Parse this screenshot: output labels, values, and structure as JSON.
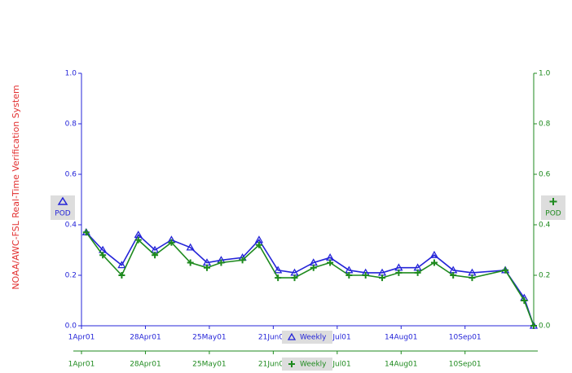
{
  "chart_data": {
    "type": "line",
    "side_label": "NOAA/AWC-FSL Real-Time Verification System",
    "ylabel": "POD",
    "y2label": "POD",
    "xlim": [
      0,
      191
    ],
    "xticks": [
      {
        "value": 0,
        "label": "1Apr01"
      },
      {
        "value": 27,
        "label": "28Apr01"
      },
      {
        "value": 54,
        "label": "25May01"
      },
      {
        "value": 81,
        "label": "21Jun01"
      },
      {
        "value": 108,
        "label": "18Jul01"
      },
      {
        "value": 135,
        "label": "14Aug01"
      },
      {
        "value": 162,
        "label": "10Sep01"
      }
    ],
    "x": [
      2,
      9,
      17,
      24,
      31,
      38,
      46,
      53,
      59,
      68,
      75,
      83,
      90,
      98,
      105,
      113,
      120,
      127,
      134,
      142,
      149,
      157,
      165,
      179,
      187,
      191
    ],
    "ylim": [
      0,
      1
    ],
    "yticks": [
      {
        "value": 0,
        "label": "0.0"
      },
      0.2,
      0.4,
      0.6,
      0.8,
      {
        "value": 1,
        "label": "1.0"
      }
    ],
    "y2lim": [
      0,
      1
    ],
    "y2ticks": [
      {
        "value": 0,
        "label": "0.0"
      },
      0.2,
      0.4,
      0.6,
      0.8,
      {
        "value": 1,
        "label": "1.0"
      }
    ],
    "series": [
      {
        "name": "Weekly",
        "color": "#2424d8",
        "marker": "triangle",
        "values": [
          0.37,
          0.3,
          0.24,
          0.36,
          0.3,
          0.34,
          0.31,
          0.25,
          0.26,
          0.27,
          0.34,
          0.22,
          0.21,
          0.25,
          0.27,
          0.22,
          0.21,
          0.21,
          0.23,
          0.23,
          0.28,
          0.22,
          0.21,
          0.22,
          0.11,
          0.0
        ]
      },
      {
        "name": "Weekly",
        "color": "#1e8a1e",
        "marker": "plus",
        "axis": "y2",
        "values": [
          0.37,
          0.28,
          0.2,
          0.34,
          0.28,
          0.33,
          0.25,
          0.23,
          0.25,
          0.26,
          0.32,
          0.19,
          0.19,
          0.23,
          0.25,
          0.2,
          0.2,
          0.19,
          0.21,
          0.21,
          0.25,
          0.2,
          0.19,
          0.22,
          0.1,
          0.0
        ]
      }
    ]
  }
}
